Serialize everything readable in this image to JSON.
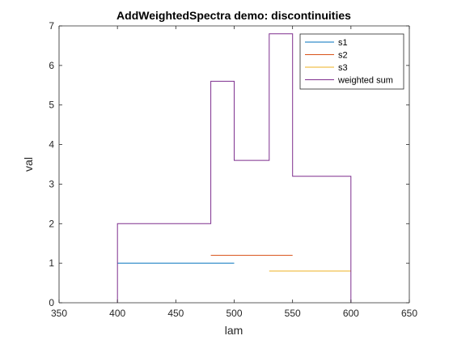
{
  "chart_data": {
    "type": "line",
    "title": "AddWeightedSpectra demo: discontinuities",
    "xlabel": "lam",
    "ylabel": "val",
    "xlim": [
      350,
      650
    ],
    "ylim": [
      0,
      7
    ],
    "xticks": [
      350,
      400,
      450,
      500,
      550,
      600,
      650
    ],
    "yticks": [
      0,
      1,
      2,
      3,
      4,
      5,
      6,
      7
    ],
    "grid": false,
    "legend_position": "top-right",
    "series": [
      {
        "name": "s1",
        "color": "#0072BD",
        "points": [
          [
            400,
            1
          ],
          [
            500,
            1
          ]
        ]
      },
      {
        "name": "s2",
        "color": "#D95319",
        "points": [
          [
            480,
            1.2
          ],
          [
            550,
            1.2
          ]
        ]
      },
      {
        "name": "s3",
        "color": "#EDB120",
        "points": [
          [
            530,
            0.8
          ],
          [
            600,
            0.8
          ]
        ]
      },
      {
        "name": "weighted sum",
        "color": "#7E2F8E",
        "points": [
          [
            400,
            0
          ],
          [
            400,
            2
          ],
          [
            480,
            2
          ],
          [
            480,
            5.6
          ],
          [
            500,
            5.6
          ],
          [
            500,
            3.6
          ],
          [
            530,
            3.6
          ],
          [
            530,
            6.8
          ],
          [
            550,
            6.8
          ],
          [
            550,
            3.2
          ],
          [
            600,
            3.2
          ],
          [
            600,
            0
          ]
        ]
      }
    ]
  }
}
